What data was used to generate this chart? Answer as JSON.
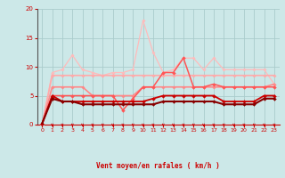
{
  "bg_color": "#cce8e8",
  "grid_color": "#aacccc",
  "xlabel": "Vent moyen/en rafales ( km/h )",
  "xlabel_color": "#cc0000",
  "tick_color": "#cc0000",
  "axis_color": "#888888",
  "xlim": [
    -0.5,
    23.5
  ],
  "ylim": [
    0,
    20
  ],
  "yticks": [
    0,
    5,
    10,
    15,
    20
  ],
  "xticks": [
    0,
    1,
    2,
    3,
    4,
    5,
    6,
    7,
    8,
    9,
    10,
    11,
    12,
    13,
    14,
    15,
    16,
    17,
    18,
    19,
    20,
    21,
    22,
    23
  ],
  "lines": [
    {
      "x": [
        0,
        1,
        2,
        3,
        4,
        5,
        6,
        7,
        8,
        9,
        10,
        11,
        12,
        13,
        14,
        15,
        16,
        17,
        18,
        19,
        20,
        21,
        22,
        23
      ],
      "y": [
        0.0,
        9.0,
        9.5,
        12.0,
        9.5,
        9.0,
        8.5,
        9.0,
        9.0,
        9.5,
        18.0,
        12.5,
        9.0,
        9.5,
        11.5,
        11.5,
        9.5,
        11.5,
        9.5,
        9.5,
        9.5,
        9.5,
        9.5,
        7.0
      ],
      "color": "#ffbbbb",
      "lw": 0.9,
      "marker": "D",
      "ms": 1.8
    },
    {
      "x": [
        0,
        1,
        2,
        3,
        4,
        5,
        6,
        7,
        8,
        9,
        10,
        11,
        12,
        13,
        14,
        15,
        16,
        17,
        18,
        19,
        20,
        21,
        22,
        23
      ],
      "y": [
        0.0,
        8.5,
        8.5,
        8.5,
        8.5,
        8.5,
        8.5,
        8.5,
        8.5,
        8.5,
        8.5,
        8.5,
        8.5,
        8.5,
        8.5,
        8.5,
        8.5,
        8.5,
        8.5,
        8.5,
        8.5,
        8.5,
        8.5,
        8.5
      ],
      "color": "#ffaaaa",
      "lw": 1.2,
      "marker": "D",
      "ms": 1.8
    },
    {
      "x": [
        0,
        1,
        2,
        3,
        4,
        5,
        6,
        7,
        8,
        9,
        10,
        11,
        12,
        13,
        14,
        15,
        16,
        17,
        18,
        19,
        20,
        21,
        22,
        23
      ],
      "y": [
        0.0,
        6.5,
        6.5,
        6.5,
        6.5,
        5.0,
        5.0,
        5.0,
        5.0,
        5.0,
        6.5,
        6.5,
        6.5,
        6.5,
        6.5,
        6.5,
        6.5,
        6.5,
        6.5,
        6.5,
        6.5,
        6.5,
        6.5,
        7.0
      ],
      "color": "#ff8888",
      "lw": 1.2,
      "marker": "D",
      "ms": 1.8
    },
    {
      "x": [
        0,
        1,
        2,
        3,
        4,
        5,
        6,
        7,
        8,
        9,
        10,
        11,
        12,
        13,
        14,
        15,
        16,
        17,
        18,
        19,
        20,
        21,
        22,
        23
      ],
      "y": [
        0.0,
        5.0,
        5.0,
        5.0,
        5.0,
        5.0,
        5.0,
        5.0,
        2.5,
        4.5,
        6.5,
        6.5,
        9.0,
        9.0,
        11.5,
        6.5,
        6.5,
        7.0,
        6.5,
        6.5,
        6.5,
        6.5,
        6.5,
        6.5
      ],
      "color": "#ff5555",
      "lw": 1.1,
      "marker": "D",
      "ms": 2.0
    },
    {
      "x": [
        0,
        1,
        2,
        3,
        4,
        5,
        6,
        7,
        8,
        9,
        10,
        11,
        12,
        13,
        14,
        15,
        16,
        17,
        18,
        19,
        20,
        21,
        22,
        23
      ],
      "y": [
        0.2,
        5.0,
        4.0,
        4.0,
        4.0,
        4.0,
        4.0,
        4.0,
        4.0,
        4.0,
        4.0,
        4.5,
        5.0,
        5.0,
        5.0,
        5.0,
        5.0,
        5.0,
        4.0,
        4.0,
        4.0,
        4.0,
        5.0,
        5.0
      ],
      "color": "#cc0000",
      "lw": 1.3,
      "marker": "D",
      "ms": 2.0
    },
    {
      "x": [
        0,
        1,
        2,
        3,
        4,
        5,
        6,
        7,
        8,
        9,
        10,
        11,
        12,
        13,
        14,
        15,
        16,
        17,
        18,
        19,
        20,
        21,
        22,
        23
      ],
      "y": [
        0.2,
        4.5,
        4.0,
        4.0,
        3.5,
        3.5,
        3.5,
        3.5,
        3.5,
        3.5,
        3.5,
        3.5,
        4.0,
        4.0,
        4.0,
        4.0,
        4.0,
        4.0,
        3.5,
        3.5,
        3.5,
        3.5,
        4.5,
        4.5
      ],
      "color": "#880000",
      "lw": 1.5,
      "marker": "D",
      "ms": 2.0
    }
  ],
  "arrow_color": "#cc0000",
  "arrow_angles": [
    225,
    225,
    225,
    225,
    225,
    225,
    225,
    225,
    225,
    180,
    180,
    180,
    225,
    270,
    225,
    225,
    225,
    225,
    225,
    225,
    180,
    225,
    225,
    225
  ]
}
